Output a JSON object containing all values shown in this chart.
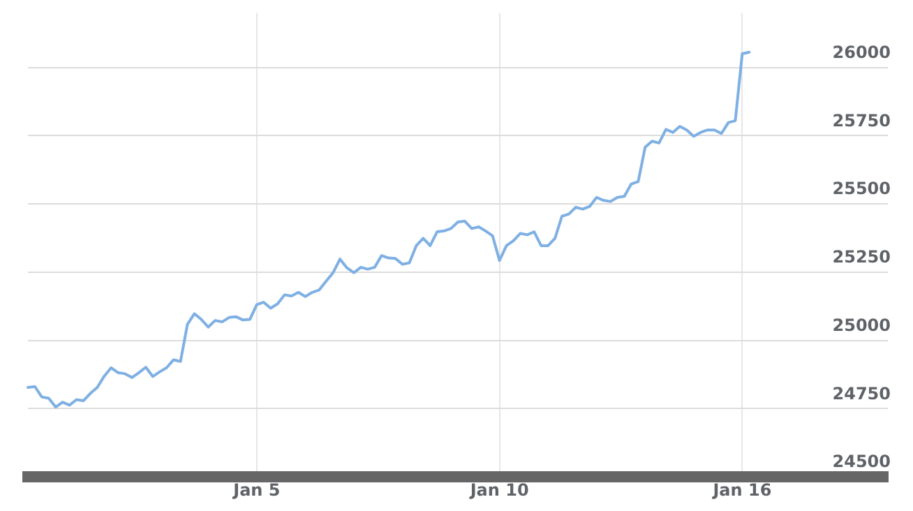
{
  "chart_data": {
    "type": "line",
    "categories": [
      null,
      null,
      null,
      null,
      null,
      null,
      null,
      null,
      null,
      null,
      null,
      null,
      null,
      null,
      null,
      null,
      null,
      null,
      null,
      null,
      null,
      null,
      null,
      null,
      null,
      null,
      null,
      null,
      null,
      null,
      null,
      null,
      null,
      "Jan 5",
      null,
      null,
      null,
      null,
      null,
      null,
      null,
      null,
      null,
      null,
      null,
      null,
      null,
      null,
      null,
      null,
      null,
      null,
      null,
      null,
      null,
      null,
      null,
      null,
      null,
      null,
      null,
      null,
      null,
      null,
      null,
      null,
      null,
      null,
      "Jan 10",
      null,
      null,
      null,
      null,
      null,
      null,
      null,
      null,
      null,
      null,
      null,
      null,
      null,
      null,
      null,
      null,
      null,
      null,
      null,
      null,
      null,
      null,
      null,
      null,
      null,
      null,
      null,
      null,
      null,
      null,
      null,
      null,
      null,
      null,
      "Jan 16",
      null,
      null,
      null,
      null,
      null,
      null,
      null,
      null,
      null,
      null,
      null,
      null,
      null,
      null,
      null,
      null,
      null,
      null,
      null,
      null,
      null
    ],
    "series": [
      {
        "color": "#7fb0e3",
        "values": [
          24828,
          24831,
          24793,
          24788,
          24756,
          24774,
          24763,
          24783,
          24779,
          24806,
          24828,
          24869,
          24900,
          24882,
          24878,
          24864,
          24882,
          24902,
          24868,
          24885,
          24900,
          24929,
          24923,
          25059,
          25098,
          25077,
          25049,
          25073,
          25068,
          25084,
          25087,
          25075,
          25077,
          25131,
          25140,
          25118,
          25134,
          25167,
          25163,
          25176,
          25161,
          25176,
          25185,
          25217,
          25248,
          25298,
          25266,
          25248,
          25268,
          25261,
          25268,
          25311,
          25302,
          25300,
          25279,
          25284,
          25347,
          25374,
          25347,
          25398,
          25401,
          25410,
          25434,
          25437,
          25410,
          25416,
          25401,
          25383,
          25293,
          25347,
          25365,
          25392,
          25387,
          25398,
          25347,
          25347,
          25374,
          25455,
          25463,
          25488,
          25481,
          25491,
          25524,
          25513,
          25509,
          25524,
          25528,
          25573,
          25582,
          25708,
          25730,
          25723,
          25773,
          25762,
          25784,
          25771,
          25748,
          25762,
          25771,
          25771,
          25758,
          25798,
          25805,
          26050,
          26056,
          null,
          null,
          null,
          null,
          null,
          null,
          null,
          null,
          null,
          null,
          null,
          null,
          null,
          null,
          null,
          null,
          null,
          null,
          null,
          null
        ]
      }
    ],
    "ylim": [
      24500,
      26200
    ],
    "yticks": [
      24500,
      24750,
      25000,
      25250,
      25500,
      25750,
      26000
    ],
    "grid": true,
    "marker": "none",
    "line_style": "solid"
  }
}
